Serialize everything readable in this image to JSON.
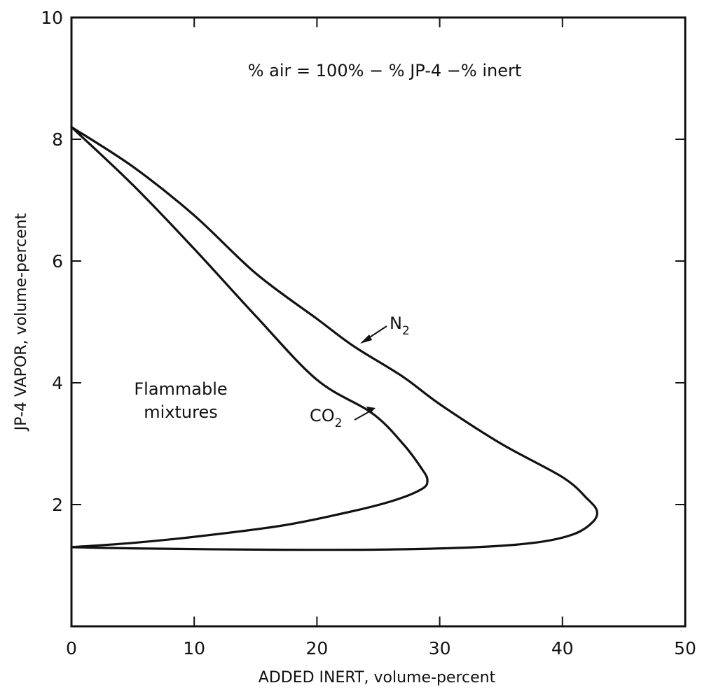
{
  "chart_data": {
    "type": "line",
    "title": "",
    "xlabel": "ADDED INERT, volume-percent",
    "ylabel": "JP-4 VAPOR, volume-percent",
    "xlim": [
      0,
      50
    ],
    "ylim": [
      0,
      10
    ],
    "x_ticks": [
      "0",
      "10",
      "20",
      "30",
      "40",
      "50"
    ],
    "y_ticks": [
      "2",
      "4",
      "6",
      "8",
      "10"
    ],
    "grid": false,
    "legend": "none",
    "series": [
      {
        "name": "N2",
        "points": [
          [
            0,
            8.2
          ],
          [
            5,
            7.55
          ],
          [
            10,
            6.75
          ],
          [
            15,
            5.8
          ],
          [
            20,
            5.05
          ],
          [
            23,
            4.6
          ],
          [
            27,
            4.1
          ],
          [
            30,
            3.65
          ],
          [
            35,
            3.0
          ],
          [
            40,
            2.45
          ],
          [
            42,
            2.1
          ],
          [
            42.8,
            1.9
          ],
          [
            42.5,
            1.72
          ],
          [
            41,
            1.52
          ],
          [
            38,
            1.38
          ],
          [
            33,
            1.3
          ],
          [
            25,
            1.26
          ],
          [
            15,
            1.26
          ],
          [
            5,
            1.28
          ],
          [
            0,
            1.3
          ]
        ]
      },
      {
        "name": "CO2",
        "points": [
          [
            0,
            8.2
          ],
          [
            5,
            7.25
          ],
          [
            10,
            6.2
          ],
          [
            15,
            5.1
          ],
          [
            20,
            4.05
          ],
          [
            24.5,
            3.5
          ],
          [
            27,
            3.0
          ],
          [
            28.5,
            2.6
          ],
          [
            29,
            2.4
          ],
          [
            28.5,
            2.25
          ],
          [
            26,
            2.05
          ],
          [
            22,
            1.85
          ],
          [
            17,
            1.65
          ],
          [
            10,
            1.47
          ],
          [
            5,
            1.37
          ],
          [
            0,
            1.3
          ]
        ]
      }
    ],
    "annotations": {
      "formula": "% air = 100% − % JP-4 −% inert",
      "region": [
        "Flammable",
        "mixtures"
      ],
      "n2_label": "N",
      "n2_sub": "2",
      "co2_label": "CO",
      "co2_sub": "2"
    }
  }
}
